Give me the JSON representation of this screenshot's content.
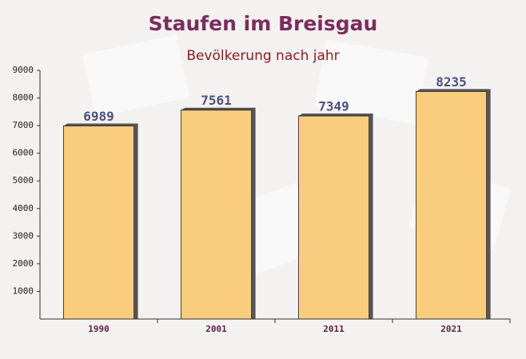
{
  "chart_data": {
    "type": "bar",
    "title": "Staufen im Breisgau",
    "subtitle": "Bevölkerung nach jahr",
    "categories": [
      "1990",
      "2001",
      "2011",
      "2021"
    ],
    "values": [
      6989,
      7561,
      7349,
      8235
    ],
    "color": "#f9c56a",
    "ylim": [
      0,
      9000
    ],
    "yticks": [
      1000,
      2000,
      3000,
      4000,
      5000,
      6000,
      7000,
      8000,
      9000
    ],
    "grid": false
  }
}
